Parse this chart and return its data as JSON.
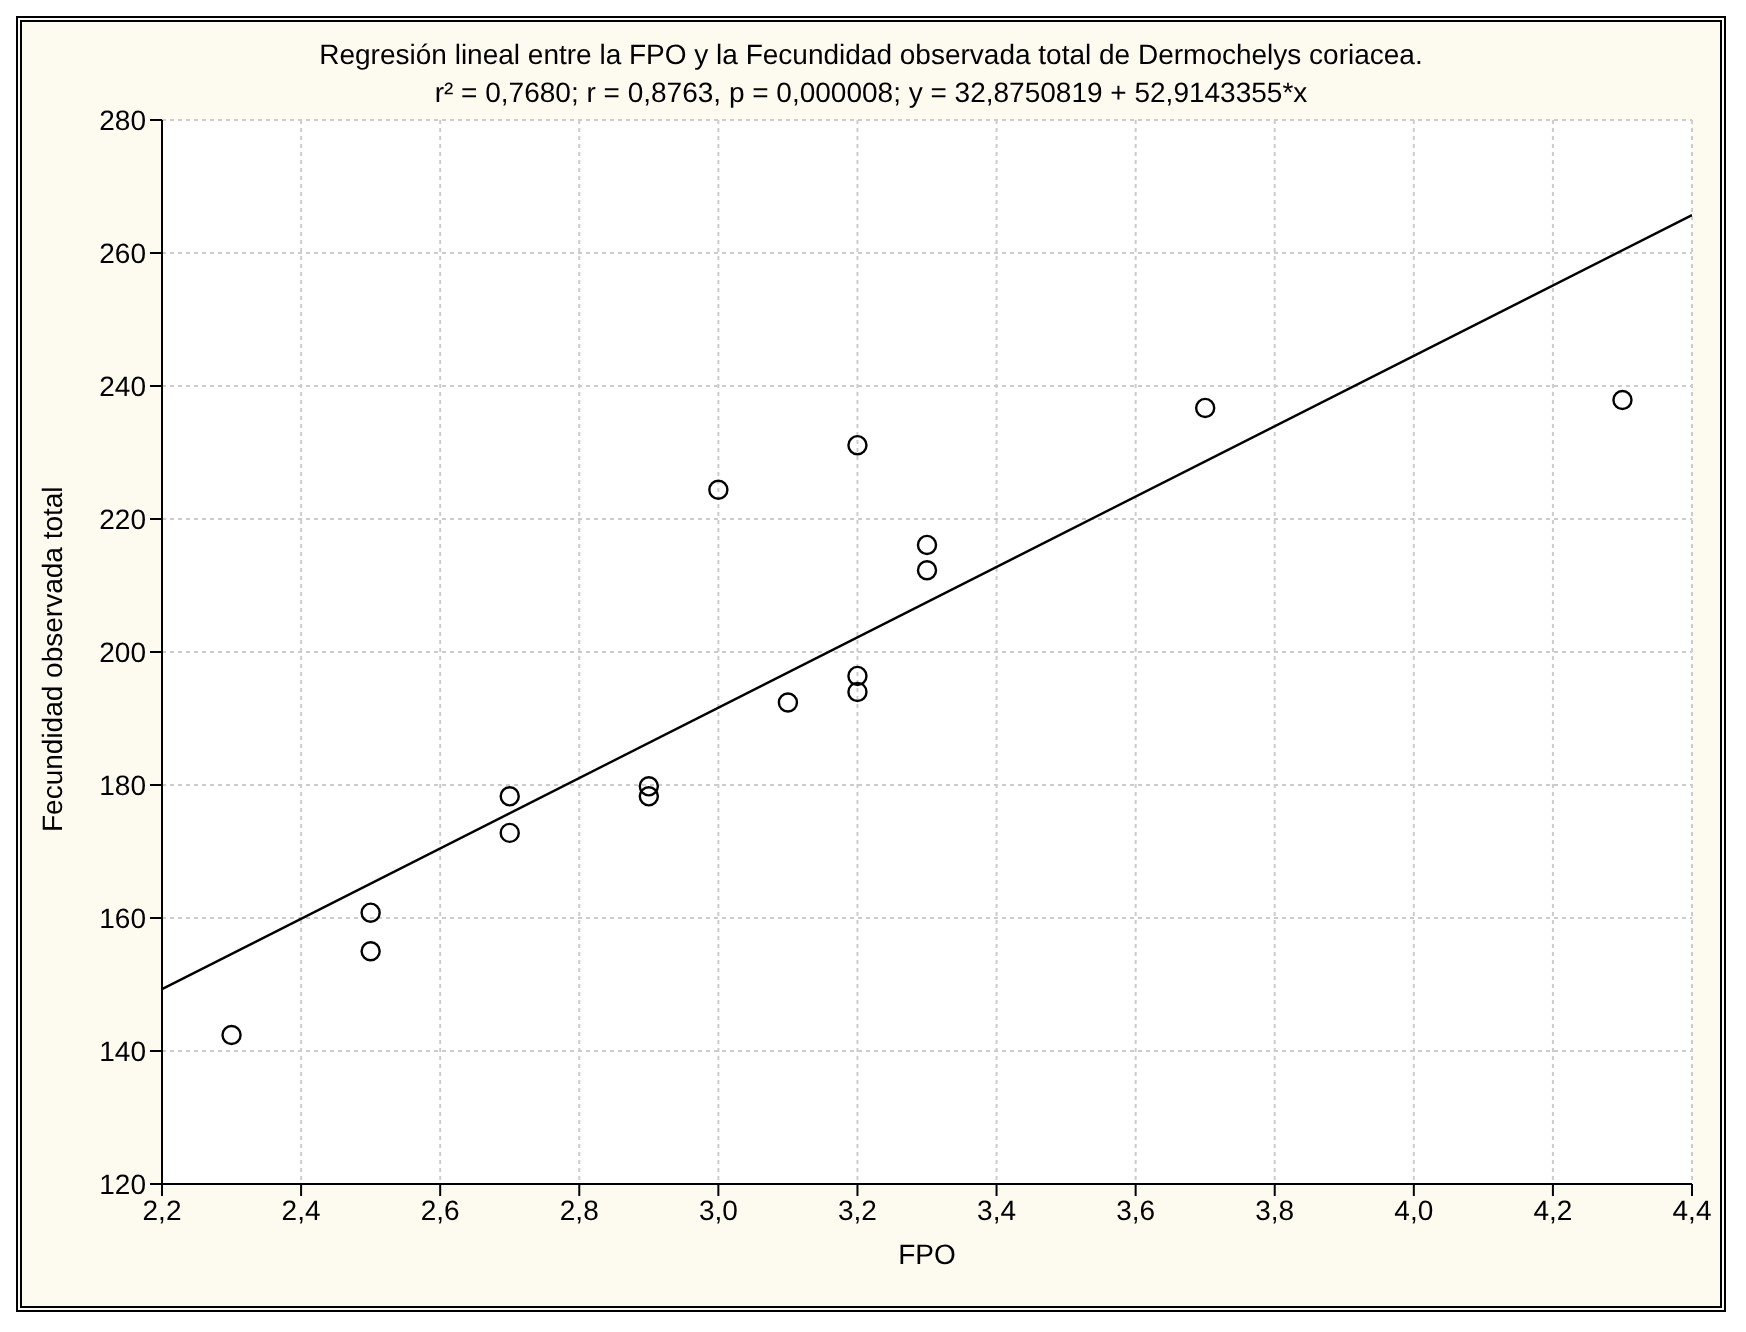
{
  "chart_data": {
    "type": "scatter",
    "title": "Regresión lineal entre la FPO y la Fecundidad observada total de Dermochelys coriacea.",
    "subtitle": "r² = 0,7680;  r = 0,8763, p = 0,000008;  y = 32,8750819 + 52,9143355*x",
    "xlabel": "FPO",
    "ylabel": "Fecundidad observada total",
    "series": [
      {
        "color": "#000000",
        "marker": "circle",
        "x": [
          2.3,
          2.5,
          2.5,
          2.7,
          2.7,
          2.9,
          2.9,
          3.0,
          3.1,
          3.2,
          3.2,
          3.2,
          3.3,
          3.3,
          3.7,
          4.3
        ],
        "values": [
          142.4,
          160.8,
          155.0,
          178.3,
          172.8,
          179.8,
          178.3,
          224.4,
          192.4,
          231.1,
          196.4,
          194.0,
          216.1,
          212.3,
          236.7,
          237.9
        ]
      },
      {
        "type": "line",
        "color": "#000000",
        "marker": "none",
        "line_style": "solid",
        "x": [
          2.2,
          4.4
        ],
        "values": [
          149.3,
          265.7
        ]
      }
    ],
    "xlim": [
      2.2,
      4.4
    ],
    "xticks": [
      {
        "value": 2.2,
        "label": "2,2"
      },
      {
        "value": 2.4,
        "label": "2,4"
      },
      {
        "value": 2.6,
        "label": "2,6"
      },
      {
        "value": 2.8,
        "label": "2,8"
      },
      {
        "value": 3.0,
        "label": "3,0"
      },
      {
        "value": 3.2,
        "label": "3,2"
      },
      {
        "value": 3.4,
        "label": "3,4"
      },
      {
        "value": 3.6,
        "label": "3,6"
      },
      {
        "value": 3.8,
        "label": "3,8"
      },
      {
        "value": 4.0,
        "label": "4,0"
      },
      {
        "value": 4.2,
        "label": "4,2"
      },
      {
        "value": 4.4,
        "label": "4,4"
      }
    ],
    "ylim": [
      120,
      280
    ],
    "yticks": [
      120,
      140,
      160,
      180,
      200,
      220,
      240,
      260,
      280
    ],
    "grid": true
  }
}
